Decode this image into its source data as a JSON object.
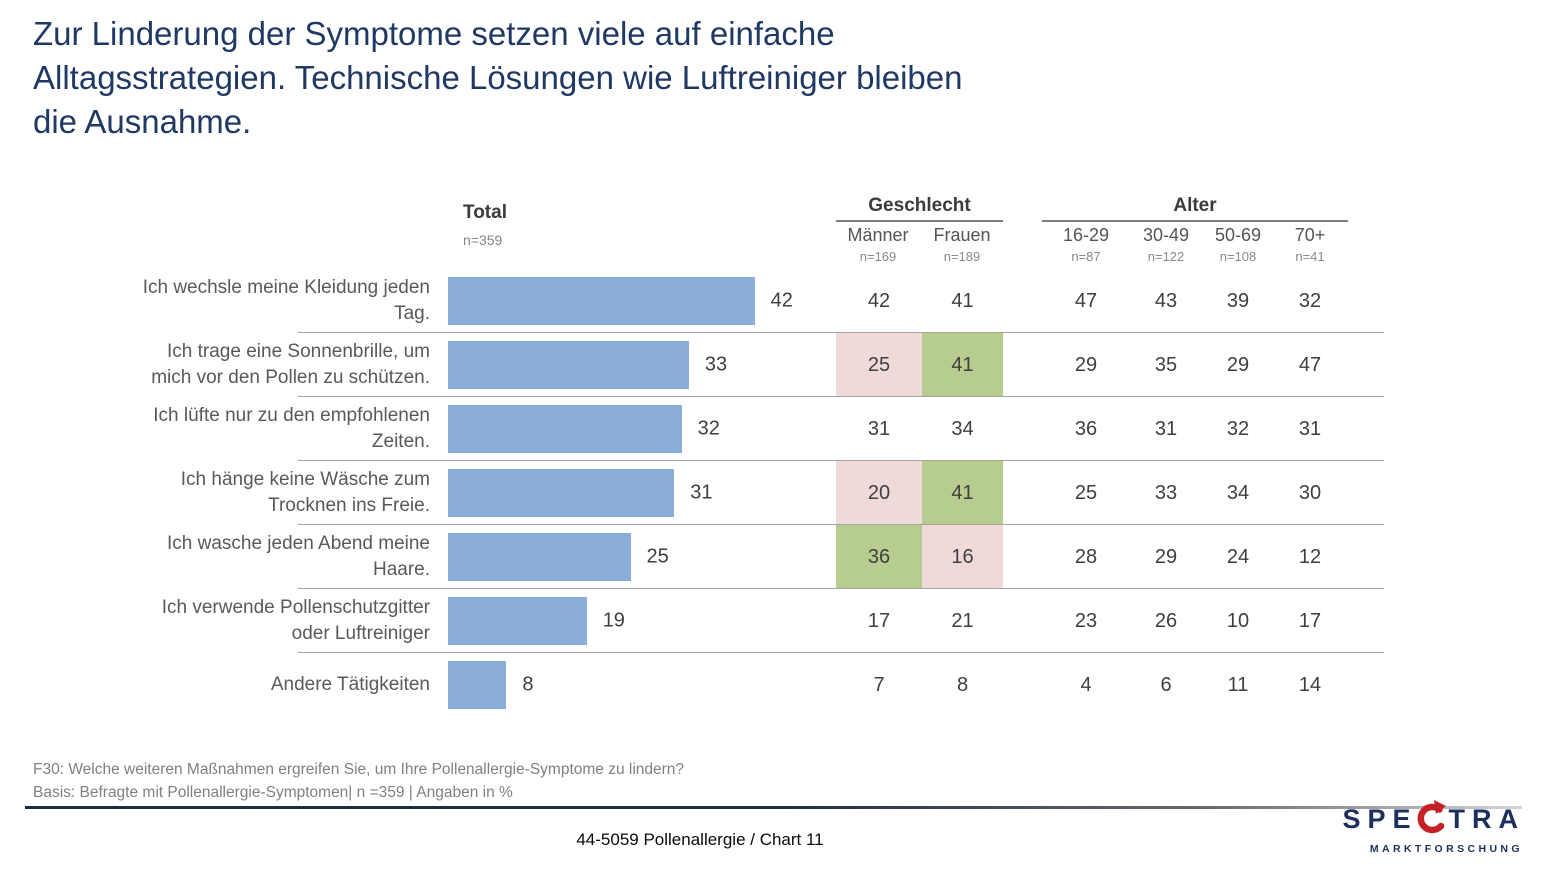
{
  "title": "Zur Linderung der Symptome setzen viele auf einfache\nAlltagsstrategien. Technische Lösungen wie Luftreiniger bleiben\ndie Ausnahme.",
  "table": {
    "total_header": {
      "label": "Total",
      "n": "n=359"
    },
    "groups": [
      {
        "label": "Geschlecht",
        "columns": [
          {
            "label": "Männer",
            "n": "n=169"
          },
          {
            "label": "Frauen",
            "n": "n=189"
          }
        ]
      },
      {
        "label": "Alter",
        "columns": [
          {
            "label": "16-29",
            "n": "n=87"
          },
          {
            "label": "30-49",
            "n": "n=122"
          },
          {
            "label": "50-69",
            "n": "n=108"
          },
          {
            "label": "70+",
            "n": "n=41"
          }
        ]
      }
    ],
    "rows": [
      {
        "label": "Ich wechsle meine Kleidung jeden\nTag.",
        "total": 42,
        "maenner": 42,
        "frauen": 41,
        "age": [
          47,
          43,
          39,
          32
        ],
        "maenner_hl": "",
        "frauen_hl": ""
      },
      {
        "label": "Ich trage eine Sonnenbrille, um\nmich vor den Pollen zu schützen.",
        "total": 33,
        "maenner": 25,
        "frauen": 41,
        "age": [
          29,
          35,
          29,
          47
        ],
        "maenner_hl": "low",
        "frauen_hl": "high"
      },
      {
        "label": "Ich lüfte nur zu den empfohlenen\nZeiten.",
        "total": 32,
        "maenner": 31,
        "frauen": 34,
        "age": [
          36,
          31,
          32,
          31
        ],
        "maenner_hl": "",
        "frauen_hl": ""
      },
      {
        "label": "Ich hänge keine Wäsche zum\nTrocknen ins Freie.",
        "total": 31,
        "maenner": 20,
        "frauen": 41,
        "age": [
          25,
          33,
          34,
          30
        ],
        "maenner_hl": "low",
        "frauen_hl": "high"
      },
      {
        "label": "Ich wasche jeden Abend meine\nHaare.",
        "total": 25,
        "maenner": 36,
        "frauen": 16,
        "age": [
          28,
          29,
          24,
          12
        ],
        "maenner_hl": "high",
        "frauen_hl": "low"
      },
      {
        "label": "Ich verwende Pollenschutzgitter\noder Luftreiniger",
        "total": 19,
        "maenner": 17,
        "frauen": 21,
        "age": [
          23,
          26,
          10,
          17
        ],
        "maenner_hl": "",
        "frauen_hl": ""
      },
      {
        "label": "Andere Tätigkeiten",
        "total": 8,
        "maenner": 7,
        "frauen": 8,
        "age": [
          4,
          6,
          11,
          14
        ],
        "maenner_hl": "",
        "frauen_hl": ""
      }
    ]
  },
  "chart_data": {
    "type": "bar",
    "orientation": "horizontal",
    "title": "Zur Linderung der Symptome setzen viele auf einfache Alltagsstrategien. Technische Lösungen wie Luftreiniger bleiben die Ausnahme.",
    "unit": "%",
    "xlim": [
      0,
      50
    ],
    "categories": [
      "Ich wechsle meine Kleidung jeden Tag.",
      "Ich trage eine Sonnenbrille, um mich vor den Pollen zu schützen.",
      "Ich lüfte nur zu den empfohlenen Zeiten.",
      "Ich hänge keine Wäsche zum Trocknen ins Freie.",
      "Ich wasche jeden Abend meine Haare.",
      "Ich verwende Pollenschutzgitter oder Luftreiniger",
      "Andere Tätigkeiten"
    ],
    "series": [
      {
        "name": "Total (n=359)",
        "values": [
          42,
          33,
          32,
          31,
          25,
          19,
          8
        ]
      },
      {
        "name": "Männer (n=169)",
        "values": [
          42,
          25,
          31,
          20,
          36,
          17,
          7
        ]
      },
      {
        "name": "Frauen (n=189)",
        "values": [
          41,
          41,
          34,
          41,
          16,
          21,
          8
        ]
      },
      {
        "name": "16-29 (n=87)",
        "values": [
          47,
          29,
          36,
          25,
          28,
          23,
          4
        ]
      },
      {
        "name": "30-49 (n=122)",
        "values": [
          43,
          35,
          31,
          33,
          29,
          26,
          6
        ]
      },
      {
        "name": "50-69 (n=108)",
        "values": [
          39,
          29,
          32,
          34,
          24,
          10,
          11
        ]
      },
      {
        "name": "70+ (n=41)",
        "values": [
          32,
          47,
          31,
          30,
          12,
          17,
          14
        ]
      }
    ],
    "highlights": {
      "significantly_higher_color": "#b7cd90",
      "significantly_lower_color": "#f0d9d9",
      "bar_color": "#8baed9",
      "title_color": "#1f3864"
    },
    "legend_position": "none",
    "grid": false
  },
  "footnote": "F30: Welche weiteren Maßnahmen ergreifen Sie, um Ihre Pollenallergie-Symptome zu lindern?\nBasis: Befragte mit Pollenallergie-Symptomen| n =359 | Angaben in %",
  "footer": {
    "center": "44-5059 Pollenallergie  /  Chart 11"
  },
  "logo": {
    "part1": "SPE",
    "part2": "TRA",
    "subtitle": "MARKTFORSCHUNG"
  }
}
